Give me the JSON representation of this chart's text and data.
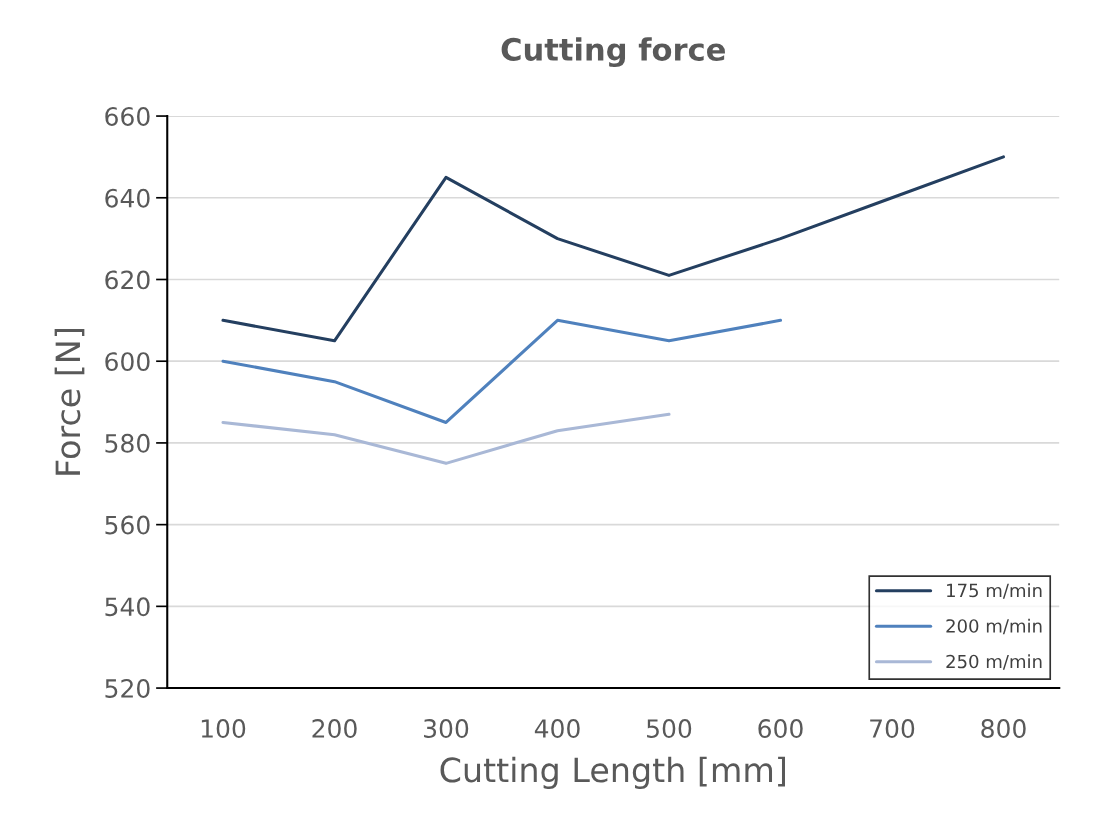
{
  "chart_data": {
    "type": "line",
    "title": "Cutting force",
    "xlabel": "Cutting Length [mm]",
    "ylabel": "Force [N]",
    "categories": [
      "100",
      "200",
      "300",
      "400",
      "500",
      "600",
      "700",
      "800"
    ],
    "series": [
      {
        "name": "175 m/min",
        "color": "#243f60",
        "values": [
          610,
          605,
          645,
          630,
          621,
          630,
          640,
          650
        ]
      },
      {
        "name": "200 m/min",
        "color": "#4f81bd",
        "values": [
          600,
          595,
          585,
          610,
          605,
          610,
          null,
          null
        ]
      },
      {
        "name": "250 m/min",
        "color": "#a9b8d6",
        "values": [
          585,
          582,
          575,
          583,
          587,
          null,
          null,
          null
        ]
      }
    ],
    "ylim": [
      520,
      660
    ],
    "yticks": [
      520,
      540,
      560,
      580,
      600,
      620,
      640,
      660
    ],
    "grid": "y",
    "legend": "bottom right",
    "marker": "none",
    "line_style": "solid"
  }
}
